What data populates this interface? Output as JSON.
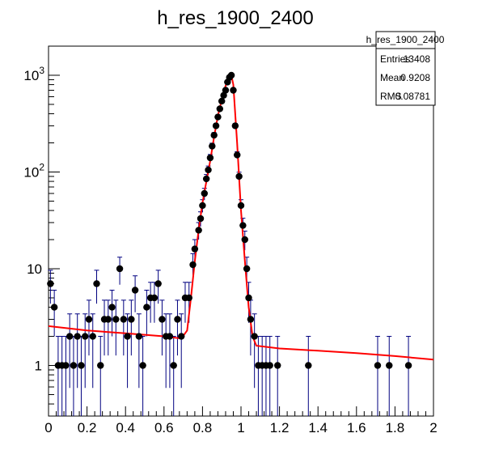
{
  "chart_data": {
    "type": "scatter",
    "title": "h_res_1900_2400",
    "xlabel": "",
    "ylabel": "",
    "xlim": [
      0,
      2
    ],
    "ylim": [
      0.3,
      2000
    ],
    "yscale": "log",
    "x_ticks": [
      "0",
      "0.2",
      "0.4",
      "0.6",
      "0.8",
      "1",
      "1.2",
      "1.4",
      "1.6",
      "1.8",
      "2"
    ],
    "y_ticks": [
      {
        "value": 1,
        "label": "1"
      },
      {
        "value": 10,
        "label": "10"
      },
      {
        "value": 100,
        "label": "10",
        "exp": "2"
      },
      {
        "value": 1000,
        "label": "10",
        "exp": "3"
      }
    ],
    "grid": false,
    "colors": {
      "points": "#000000",
      "error_bars": "#000080",
      "fit": "#ff0000"
    },
    "stats_box": {
      "name": "h_res_1900_2400",
      "rows": [
        {
          "label": "Entries",
          "value": "13408"
        },
        {
          "label": "Mean",
          "value": "0.9208"
        },
        {
          "label": "RMS",
          "value": "0.08781"
        }
      ]
    },
    "series": [
      {
        "type": "histogram-points",
        "points": [
          [
            0.01,
            7
          ],
          [
            0.03,
            4
          ],
          [
            0.05,
            1
          ],
          [
            0.07,
            1
          ],
          [
            0.09,
            1
          ],
          [
            0.11,
            2
          ],
          [
            0.13,
            1
          ],
          [
            0.15,
            2
          ],
          [
            0.17,
            1
          ],
          [
            0.19,
            2
          ],
          [
            0.21,
            3
          ],
          [
            0.23,
            2
          ],
          [
            0.25,
            7
          ],
          [
            0.27,
            1
          ],
          [
            0.29,
            3
          ],
          [
            0.31,
            3
          ],
          [
            0.33,
            4
          ],
          [
            0.35,
            3
          ],
          [
            0.37,
            10
          ],
          [
            0.39,
            3
          ],
          [
            0.41,
            2
          ],
          [
            0.43,
            3
          ],
          [
            0.45,
            6
          ],
          [
            0.47,
            2
          ],
          [
            0.49,
            1
          ],
          [
            0.51,
            4
          ],
          [
            0.53,
            5
          ],
          [
            0.55,
            5
          ],
          [
            0.57,
            7
          ],
          [
            0.59,
            3
          ],
          [
            0.61,
            2
          ],
          [
            0.63,
            2
          ],
          [
            0.65,
            1
          ],
          [
            0.67,
            3
          ],
          [
            0.69,
            2
          ],
          [
            0.71,
            5
          ],
          [
            0.73,
            5
          ],
          [
            0.75,
            11
          ],
          [
            0.76,
            16
          ],
          [
            0.78,
            25
          ],
          [
            0.79,
            33
          ],
          [
            0.8,
            45
          ],
          [
            0.81,
            60
          ],
          [
            0.82,
            85
          ],
          [
            0.83,
            105
          ],
          [
            0.84,
            140
          ],
          [
            0.85,
            185
          ],
          [
            0.86,
            240
          ],
          [
            0.87,
            300
          ],
          [
            0.88,
            370
          ],
          [
            0.89,
            450
          ],
          [
            0.9,
            540
          ],
          [
            0.91,
            620
          ],
          [
            0.92,
            700
          ],
          [
            0.93,
            850
          ],
          [
            0.94,
            950
          ],
          [
            0.95,
            1000
          ],
          [
            0.96,
            700
          ],
          [
            0.97,
            300
          ],
          [
            0.98,
            150
          ],
          [
            0.99,
            90
          ],
          [
            1.0,
            45
          ],
          [
            1.01,
            28
          ],
          [
            1.02,
            20
          ],
          [
            1.03,
            10
          ],
          [
            1.04,
            5
          ],
          [
            1.05,
            3
          ],
          [
            1.07,
            2
          ],
          [
            1.09,
            1
          ],
          [
            1.11,
            1
          ],
          [
            1.13,
            1
          ],
          [
            1.15,
            1
          ],
          [
            1.19,
            1
          ],
          [
            1.35,
            1
          ],
          [
            1.71,
            1
          ],
          [
            1.77,
            1
          ],
          [
            1.87,
            1
          ]
        ]
      }
    ],
    "fit": {
      "curve": [
        [
          0,
          2.55
        ],
        [
          0.2,
          2.3
        ],
        [
          0.4,
          2.15
        ],
        [
          0.6,
          2.0
        ],
        [
          0.69,
          1.9
        ],
        [
          0.72,
          2.3
        ],
        [
          0.74,
          5
        ],
        [
          0.76,
          12
        ],
        [
          0.78,
          25
        ],
        [
          0.8,
          48
        ],
        [
          0.82,
          80
        ],
        [
          0.84,
          130
        ],
        [
          0.86,
          230
        ],
        [
          0.88,
          380
        ],
        [
          0.9,
          560
        ],
        [
          0.92,
          780
        ],
        [
          0.94,
          950
        ],
        [
          0.95,
          1000
        ],
        [
          0.96,
          800
        ],
        [
          0.98,
          200
        ],
        [
          1.0,
          40
        ],
        [
          1.02,
          12
        ],
        [
          1.04,
          4
        ],
        [
          1.06,
          2
        ],
        [
          1.08,
          1.6
        ],
        [
          1.2,
          1.5
        ],
        [
          1.4,
          1.42
        ],
        [
          1.6,
          1.34
        ],
        [
          1.8,
          1.25
        ],
        [
          2.0,
          1.15
        ]
      ]
    }
  }
}
